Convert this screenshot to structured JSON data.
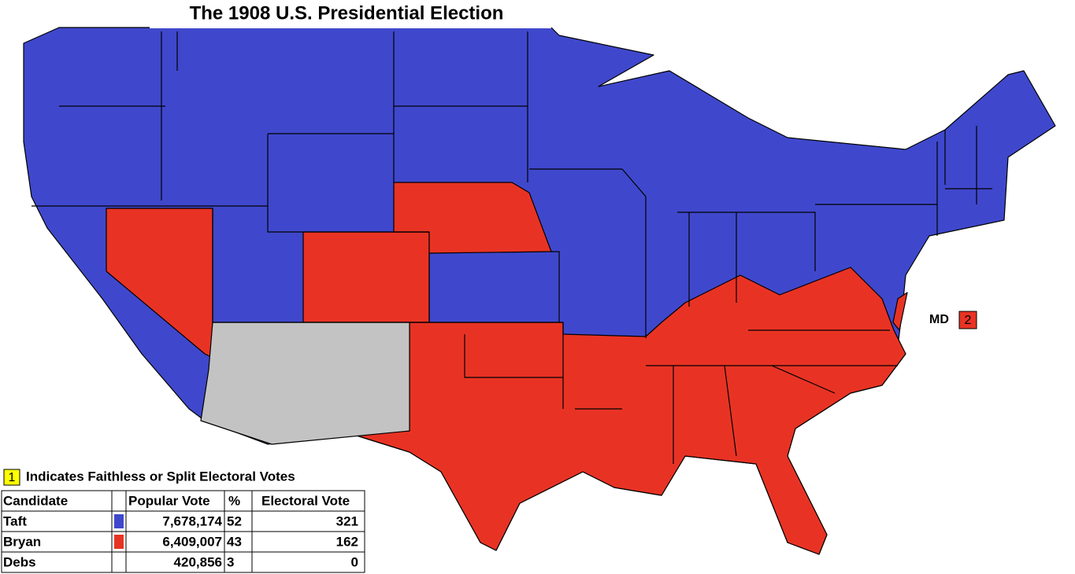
{
  "title": "The 1908 U.S. Presidential Election",
  "map": {
    "annotation": {
      "state": "MD",
      "value": "2",
      "color": "#e83324"
    }
  },
  "legend": {
    "marker": "1",
    "marker_color": "#ffff00",
    "text": "Indicates Faithless or Split Electoral Votes"
  },
  "table": {
    "header": [
      "Candidate",
      "Popular Vote",
      "%",
      "Electoral Vote"
    ],
    "rows": [
      {
        "candidate": "Taft",
        "color": "#3f48cc",
        "popular_vote": "7,678,174",
        "percent": "52",
        "electoral_vote": "321"
      },
      {
        "candidate": "Bryan",
        "color": "#e83324",
        "popular_vote": "6,409,007",
        "percent": "43",
        "electoral_vote": "162"
      },
      {
        "candidate": "Debs",
        "color": "#ffffff",
        "popular_vote": "420,856",
        "percent": "3",
        "electoral_vote": "0"
      }
    ]
  }
}
